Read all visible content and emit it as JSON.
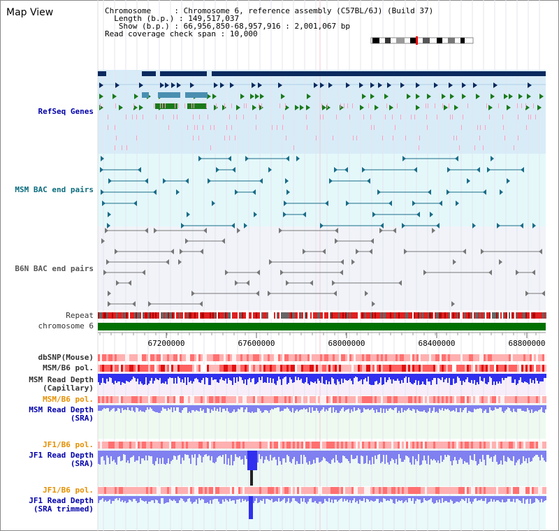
{
  "title": "Map View",
  "info": {
    "chromosome_label": "Chromosome",
    "chromosome_value": "Chromosome 6, reference assembly (C57BL/6J) (Build 37)",
    "length_label": "Length (b.p.)",
    "length_value": "149,517,037",
    "show_label": "Show (b.p.)",
    "show_value": "66,956,850-68,957,916 : 2,001,067 bp",
    "coverage_label": "Read coverage check span",
    "coverage_value": "10,000"
  },
  "tracks": {
    "refseq": "RefSeq Genes",
    "msm_bac": "MSM BAC end pairs",
    "b6n_bac": "B6N BAC end pairs",
    "repeat": "Repeat",
    "chromosome": "chromosome 6",
    "dbsnp": "dbSNP(Mouse)",
    "msm_b6_pol": "MSM/B6 pol.",
    "msm_depth_cap_1": "MSM Read Depth",
    "msm_depth_cap_2": "(Capillary)",
    "msm_b6_pol_2": "MSM/B6 pol.",
    "msm_depth_sra_1": "MSM Read Depth",
    "msm_depth_sra_2": "(SRA)",
    "jf1_b6_pol": "JF1/B6 pol.",
    "jf1_depth_sra_1": "JF1 Read Depth",
    "jf1_depth_sra_2": "(SRA)",
    "jf1_b6_pol_2": "JF1/B6 pol.",
    "jf1_depth_trim_1": "JF1 Read Depth",
    "jf1_depth_trim_2": "(SRA trimmed)"
  },
  "axis": {
    "ticks": [
      "67200000",
      "67600000",
      "68000000",
      "68400000",
      "68800000"
    ]
  },
  "colors": {
    "gene_navy": "#0a2a5e",
    "gene_teal": "#4a8fb0",
    "gene_green": "#1a7a1a",
    "pink": "#ff9fc0",
    "bac_teal": "#1a6c88",
    "bac_gray": "#777777",
    "chrom_green": "#007000",
    "depth_blue": "#3030ee",
    "depth_light": "#8080f0"
  }
}
